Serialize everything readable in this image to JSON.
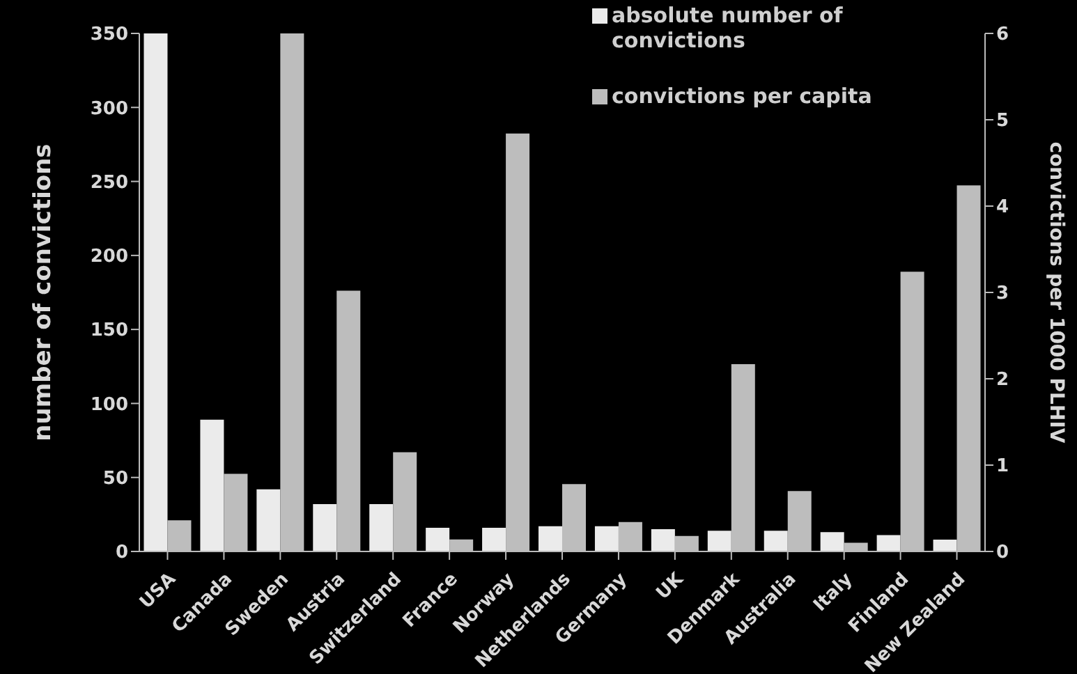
{
  "chart_data": {
    "type": "bar",
    "categories": [
      "USA",
      "Canada",
      "Sweden",
      "Austria",
      "Switzerland",
      "France",
      "Norway",
      "Netherlands",
      "Germany",
      "UK",
      "Denmark",
      "Australia",
      "Italy",
      "Finland",
      "New Zealand"
    ],
    "series": [
      {
        "name": "absolute number of convictions",
        "color": "#ebebeb",
        "values": [
          350,
          89,
          42,
          32,
          32,
          16,
          16,
          17,
          17,
          15,
          14,
          14,
          13,
          11,
          8
        ]
      },
      {
        "name": "convictions per capita",
        "color": "#bdbdbd",
        "axis": "y2",
        "values": [
          0.36,
          0.9,
          6,
          3.02,
          1.15,
          0.14,
          4.84,
          0.78,
          0.34,
          0.18,
          2.17,
          0.7,
          0.1,
          3.24,
          4.24
        ]
      }
    ],
    "ylabel": "number of convictions",
    "y2label": "convictions per 1000 PLHIV",
    "ylim": [
      0,
      350
    ],
    "yticks": [
      0,
      50,
      100,
      150,
      200,
      250,
      300,
      350
    ],
    "y2lim": [
      0,
      6
    ],
    "y2ticks": [
      0,
      1,
      2,
      3,
      4,
      5,
      6
    ],
    "legend": "top right",
    "grid": false
  }
}
